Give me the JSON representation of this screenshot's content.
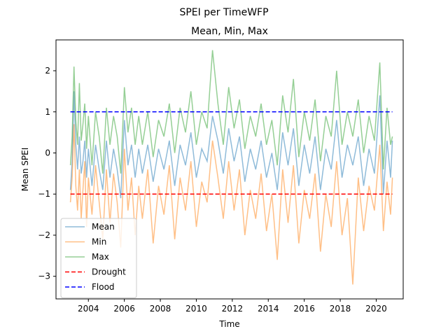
{
  "chart_data": {
    "type": "line",
    "suptitle": "SPEI per TimeWFP",
    "title": "Mean, Min, Max",
    "xlabel": "Time",
    "ylabel": "Mean SPEI",
    "xlim": [
      2002.2,
      2021.5
    ],
    "ylim": [
      -3.55,
      2.75
    ],
    "xticks": [
      2004,
      2006,
      2008,
      2010,
      2012,
      2014,
      2016,
      2018,
      2020
    ],
    "yticks": [
      -3,
      -2,
      -1,
      0,
      1,
      2
    ],
    "legend_position": "lower-left",
    "series": [
      {
        "name": "Mean",
        "color": "#1f77b4",
        "opacity": 0.5,
        "x": [
          2003.0,
          2003.1,
          2003.2,
          2003.3,
          2003.4,
          2003.5,
          2003.6,
          2003.7,
          2003.8,
          2003.9,
          2004.0,
          2004.2,
          2004.4,
          2004.6,
          2004.8,
          2005.0,
          2005.2,
          2005.4,
          2005.6,
          2005.8,
          2006.0,
          2006.2,
          2006.4,
          2006.6,
          2006.8,
          2007.0,
          2007.3,
          2007.6,
          2007.9,
          2008.2,
          2008.5,
          2008.8,
          2009.1,
          2009.4,
          2009.7,
          2010.0,
          2010.3,
          2010.6,
          2010.9,
          2011.2,
          2011.5,
          2011.8,
          2012.1,
          2012.4,
          2012.7,
          2013.0,
          2013.3,
          2013.6,
          2013.9,
          2014.2,
          2014.5,
          2014.8,
          2015.1,
          2015.4,
          2015.7,
          2016.0,
          2016.3,
          2016.6,
          2016.9,
          2017.2,
          2017.5,
          2017.8,
          2018.1,
          2018.4,
          2018.7,
          2019.0,
          2019.3,
          2019.6,
          2019.9,
          2020.2,
          2020.4,
          2020.6,
          2020.8,
          2020.9
        ],
        "y": [
          -0.9,
          -0.2,
          1.5,
          0.2,
          -0.4,
          0.4,
          -0.5,
          -0.2,
          0.3,
          -0.6,
          0.1,
          -0.8,
          0.2,
          -0.4,
          -0.9,
          0.3,
          -0.6,
          0.1,
          -0.4,
          -1.1,
          0.8,
          -0.3,
          0.2,
          -0.6,
          0.1,
          -0.5,
          0.2,
          -0.7,
          0.1,
          -0.4,
          0.3,
          -0.8,
          0.2,
          -0.3,
          0.5,
          -0.6,
          0.1,
          -0.2,
          0.9,
          0.3,
          -0.5,
          0.6,
          -0.2,
          0.4,
          -0.7,
          0.1,
          -0.4,
          0.3,
          -0.6,
          0.0,
          -0.9,
          0.5,
          -0.3,
          0.6,
          -0.8,
          0.2,
          -0.5,
          0.4,
          -0.9,
          0.1,
          -0.4,
          0.8,
          -0.6,
          0.2,
          -0.3,
          0.4,
          -0.8,
          0.1,
          -0.5,
          1.4,
          -1.0,
          0.3,
          -0.6,
          0.3
        ]
      },
      {
        "name": "Min",
        "color": "#ff7f0e",
        "opacity": 0.5,
        "x": [
          2003.0,
          2003.1,
          2003.2,
          2003.3,
          2003.4,
          2003.5,
          2003.6,
          2003.7,
          2003.8,
          2003.9,
          2004.0,
          2004.2,
          2004.4,
          2004.6,
          2004.8,
          2005.0,
          2005.2,
          2005.4,
          2005.6,
          2005.8,
          2006.0,
          2006.2,
          2006.4,
          2006.6,
          2006.8,
          2007.0,
          2007.3,
          2007.6,
          2007.9,
          2008.2,
          2008.5,
          2008.8,
          2009.1,
          2009.4,
          2009.7,
          2010.0,
          2010.3,
          2010.6,
          2010.9,
          2011.2,
          2011.5,
          2011.8,
          2012.1,
          2012.4,
          2012.7,
          2013.0,
          2013.3,
          2013.6,
          2013.9,
          2014.2,
          2014.5,
          2014.8,
          2015.1,
          2015.4,
          2015.7,
          2016.0,
          2016.3,
          2016.6,
          2016.9,
          2017.2,
          2017.5,
          2017.8,
          2018.1,
          2018.4,
          2018.7,
          2019.0,
          2019.3,
          2019.6,
          2019.9,
          2020.2,
          2020.4,
          2020.6,
          2020.8,
          2020.9
        ],
        "y": [
          -1.2,
          -0.6,
          0.7,
          -0.8,
          -1.4,
          -0.4,
          -1.6,
          -0.9,
          -0.2,
          -1.8,
          -0.6,
          -1.5,
          -0.3,
          -1.2,
          -2.1,
          -0.4,
          -1.7,
          -0.5,
          -1.2,
          -2.3,
          0.1,
          -1.4,
          -0.6,
          -2.0,
          -0.8,
          -1.6,
          -0.4,
          -2.2,
          -0.8,
          -1.5,
          -0.3,
          -2.1,
          -0.6,
          -1.4,
          -0.2,
          -1.8,
          -0.7,
          -1.2,
          0.3,
          -0.6,
          -1.6,
          -0.2,
          -1.4,
          -0.4,
          -2.0,
          -0.9,
          -1.6,
          -0.5,
          -1.9,
          -1.0,
          -2.6,
          -0.4,
          -1.7,
          -0.3,
          -2.2,
          -0.9,
          -1.6,
          -0.5,
          -2.4,
          -1.0,
          -1.8,
          -0.2,
          -2.0,
          -1.1,
          -3.2,
          -0.6,
          -1.9,
          -0.8,
          -1.4,
          0.2,
          -1.9,
          -0.7,
          -1.5,
          -0.6
        ]
      },
      {
        "name": "Max",
        "color": "#2ca02c",
        "opacity": 0.5,
        "x": [
          2003.0,
          2003.1,
          2003.2,
          2003.3,
          2003.4,
          2003.5,
          2003.6,
          2003.7,
          2003.8,
          2003.9,
          2004.0,
          2004.2,
          2004.4,
          2004.6,
          2004.8,
          2005.0,
          2005.2,
          2005.4,
          2005.6,
          2005.8,
          2006.0,
          2006.2,
          2006.4,
          2006.6,
          2006.8,
          2007.0,
          2007.3,
          2007.6,
          2007.9,
          2008.2,
          2008.5,
          2008.8,
          2009.1,
          2009.4,
          2009.7,
          2010.0,
          2010.3,
          2010.6,
          2010.9,
          2011.2,
          2011.5,
          2011.8,
          2012.1,
          2012.4,
          2012.7,
          2013.0,
          2013.3,
          2013.6,
          2013.9,
          2014.2,
          2014.5,
          2014.8,
          2015.1,
          2015.4,
          2015.7,
          2016.0,
          2016.3,
          2016.6,
          2016.9,
          2017.2,
          2017.5,
          2017.8,
          2018.1,
          2018.4,
          2018.7,
          2019.0,
          2019.3,
          2019.6,
          2019.9,
          2020.2,
          2020.4,
          2020.6,
          2020.8,
          2020.9
        ],
        "y": [
          -0.3,
          0.4,
          2.1,
          0.8,
          0.2,
          1.7,
          0.3,
          0.7,
          1.2,
          0.1,
          0.9,
          -0.3,
          1.0,
          0.4,
          -0.5,
          1.1,
          0.2,
          0.9,
          0.4,
          -0.5,
          1.6,
          0.5,
          1.1,
          0.2,
          0.9,
          0.2,
          1.0,
          -0.1,
          0.8,
          0.4,
          1.2,
          0.0,
          1.1,
          0.5,
          1.5,
          0.2,
          1.0,
          0.6,
          2.5,
          1.2,
          0.2,
          1.6,
          0.6,
          1.3,
          0.1,
          0.9,
          0.4,
          1.2,
          0.2,
          0.8,
          -0.3,
          1.4,
          0.5,
          1.8,
          -0.1,
          1.0,
          0.3,
          1.3,
          -0.2,
          0.9,
          0.4,
          2.0,
          0.2,
          1.0,
          0.4,
          1.3,
          0.0,
          0.9,
          0.3,
          2.2,
          -0.4,
          1.1,
          0.2,
          0.4
        ]
      },
      {
        "name": "Drought",
        "color": "#ff0000",
        "dashed": true,
        "opacity": 1,
        "x": [
          2003.0,
          2020.9
        ],
        "y": [
          -1,
          -1
        ]
      },
      {
        "name": "Flood",
        "color": "#0000ff",
        "dashed": true,
        "opacity": 1,
        "x": [
          2003.0,
          2020.9
        ],
        "y": [
          1,
          1
        ]
      }
    ]
  }
}
